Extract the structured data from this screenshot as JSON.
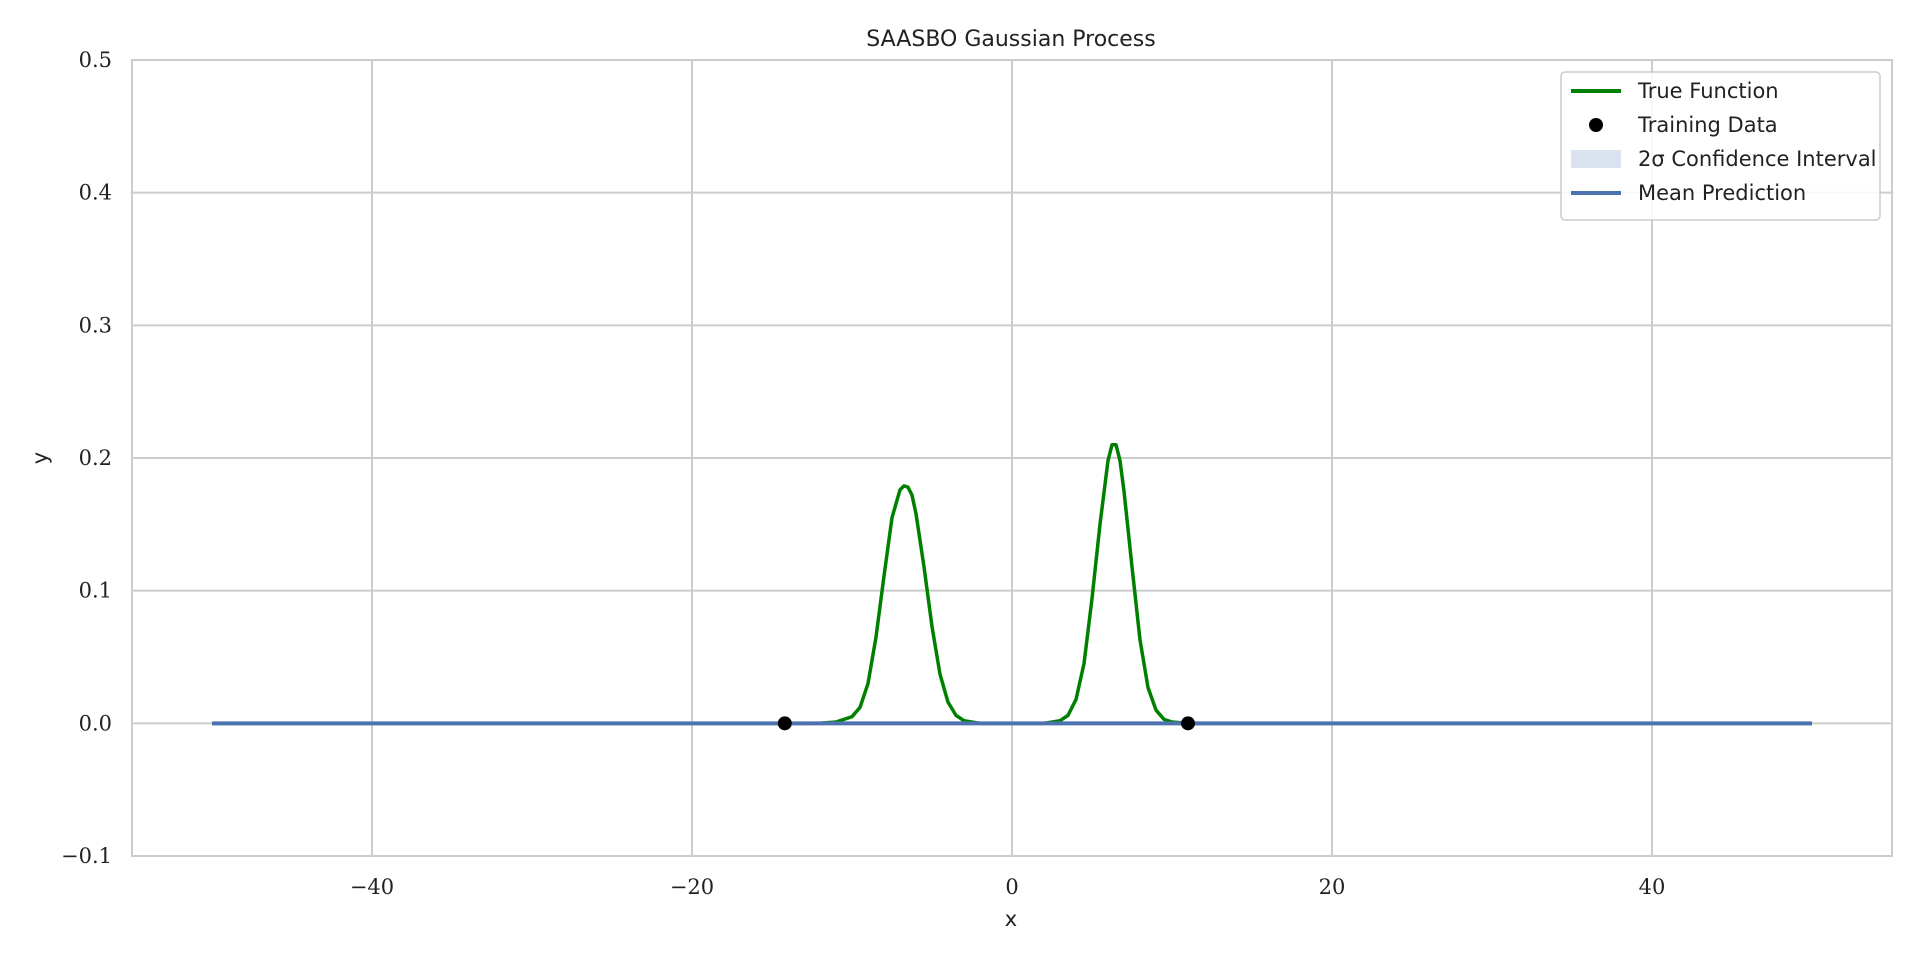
{
  "chart_data": {
    "type": "line",
    "title": "SAASBO Gaussian Process",
    "xlabel": "x",
    "ylabel": "y",
    "xlim": [
      -55,
      55
    ],
    "ylim": [
      -0.1,
      0.5
    ],
    "grid": true,
    "x_ticks": [
      -40,
      -20,
      0,
      20,
      40
    ],
    "x_tick_labels": [
      "−40",
      "−20",
      "0",
      "20",
      "40"
    ],
    "y_ticks": [
      -0.1,
      0.0,
      0.1,
      0.2,
      0.3,
      0.4,
      0.5
    ],
    "y_tick_labels": [
      "−0.1",
      "0.0",
      "0.1",
      "0.2",
      "0.3",
      "0.4",
      "0.5"
    ],
    "legend_position": "top-right",
    "legend": [
      {
        "label": "True Function",
        "kind": "line",
        "color": "#008000"
      },
      {
        "label": "Training Data",
        "kind": "marker",
        "color": "#000000"
      },
      {
        "label": "2σ Confidence Interval",
        "kind": "patch",
        "color": "#dbe2f0"
      },
      {
        "label": "Mean Prediction",
        "kind": "line",
        "color": "#4c72b0"
      }
    ],
    "series": [
      {
        "name": "True Function",
        "kind": "line",
        "color": "#008000",
        "x": [
          -50,
          -14,
          -13,
          -12,
          -11,
          -10,
          -9.5,
          -9,
          -8.5,
          -8,
          -7.5,
          -7,
          -6.75,
          -6.5,
          -6.25,
          -6,
          -5.5,
          -5,
          -4.5,
          -4,
          -3.5,
          -3,
          -2,
          -1,
          0,
          1,
          2,
          3,
          3.5,
          4,
          4.5,
          5,
          5.5,
          6,
          6.25,
          6.5,
          6.75,
          7,
          7.5,
          8,
          8.5,
          9,
          9.5,
          10,
          11,
          12,
          13,
          14,
          20,
          50
        ],
        "y": [
          0,
          0,
          0,
          0.0001,
          0.001,
          0.005,
          0.012,
          0.03,
          0.065,
          0.111,
          0.155,
          0.176,
          0.179,
          0.178,
          0.172,
          0.158,
          0.118,
          0.073,
          0.037,
          0.016,
          0.006,
          0.002,
          0,
          0,
          0,
          0,
          0,
          0.002,
          0.006,
          0.018,
          0.045,
          0.094,
          0.15,
          0.198,
          0.21,
          0.21,
          0.198,
          0.175,
          0.118,
          0.063,
          0.027,
          0.01,
          0.003,
          0.001,
          0,
          0,
          0,
          0,
          0,
          0
        ]
      },
      {
        "name": "Mean Prediction",
        "kind": "line",
        "color": "#4c72b0",
        "x": [
          -50,
          50
        ],
        "y": [
          0.0,
          0.0
        ]
      },
      {
        "name": "2σ Confidence Interval",
        "kind": "band",
        "color": "#dbe2f0",
        "x": [
          -50,
          50
        ],
        "lower": [
          0.0,
          0.0
        ],
        "upper": [
          0.0,
          0.0
        ]
      },
      {
        "name": "Training Data",
        "kind": "scatter",
        "color": "#000000",
        "x": [
          -14.2,
          11.0
        ],
        "y": [
          0.0,
          0.0
        ]
      }
    ]
  }
}
